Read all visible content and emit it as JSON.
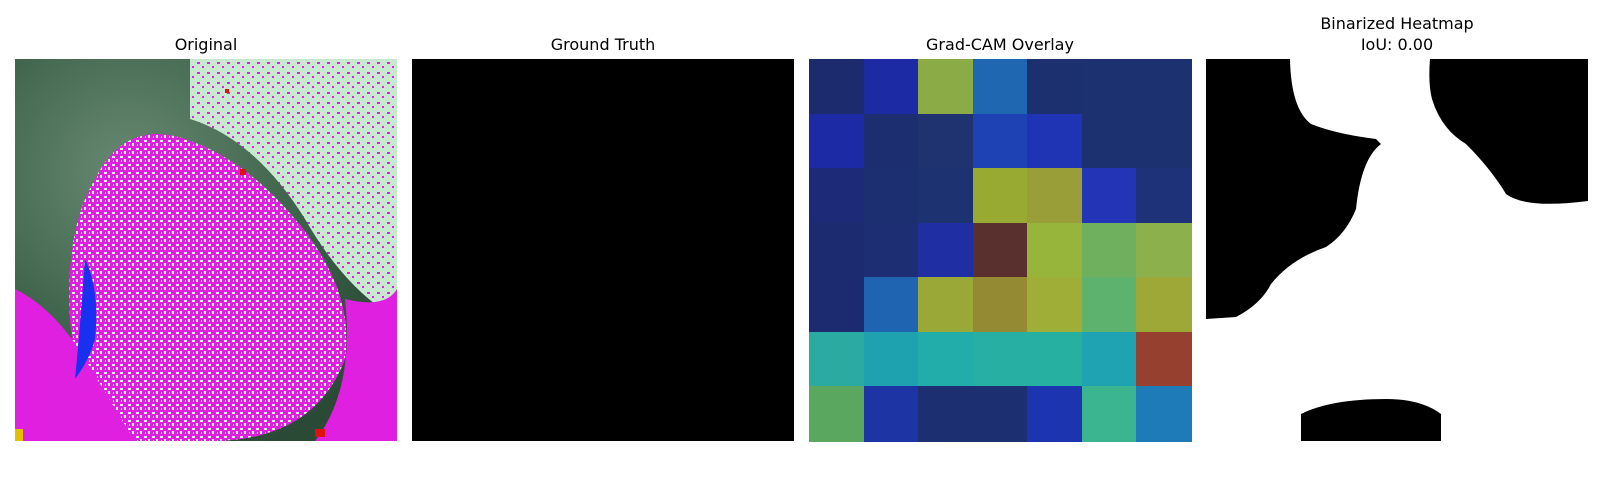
{
  "panels": [
    {
      "title": "Original"
    },
    {
      "title": "Ground Truth"
    },
    {
      "title": "Grad-CAM Overlay"
    },
    {
      "title": "Binarized Heatmap\nIoU: 0.00"
    }
  ],
  "gradcam_colors": [
    [
      "#1c2a6e",
      "#1c2aa4",
      "#8aab46",
      "#1f68b1",
      "#1c2f6e",
      "#1c3270",
      "#1c3270"
    ],
    [
      "#1c2aa6",
      "#1c2d70",
      "#1e3370",
      "#1e42b3",
      "#1e34b4",
      "#1c3270",
      "#1c3270"
    ],
    [
      "#1c2a78",
      "#1c2f70",
      "#1d3270",
      "#98aa32",
      "#9a9e38",
      "#2334b6",
      "#1e3279"
    ],
    [
      "#1c2a70",
      "#1d2f72",
      "#1f2ea2",
      "#5a302e",
      "#96b53a",
      "#6eb05e",
      "#8bb04c"
    ],
    [
      "#1c2a70",
      "#1e64b0",
      "#9aa838",
      "#958a34",
      "#9eae36",
      "#5db36e",
      "#9ea836"
    ],
    [
      "#2aaaa0",
      "#1fa2b0",
      "#22acaa",
      "#26afa2",
      "#26b0a2",
      "#1fa2b2",
      "#964030"
    ],
    [
      "#5aa860",
      "#1c34a4",
      "#1c2f70",
      "#1c2f70",
      "#1c34b0",
      "#3ab590",
      "#1e7bb8"
    ]
  ]
}
